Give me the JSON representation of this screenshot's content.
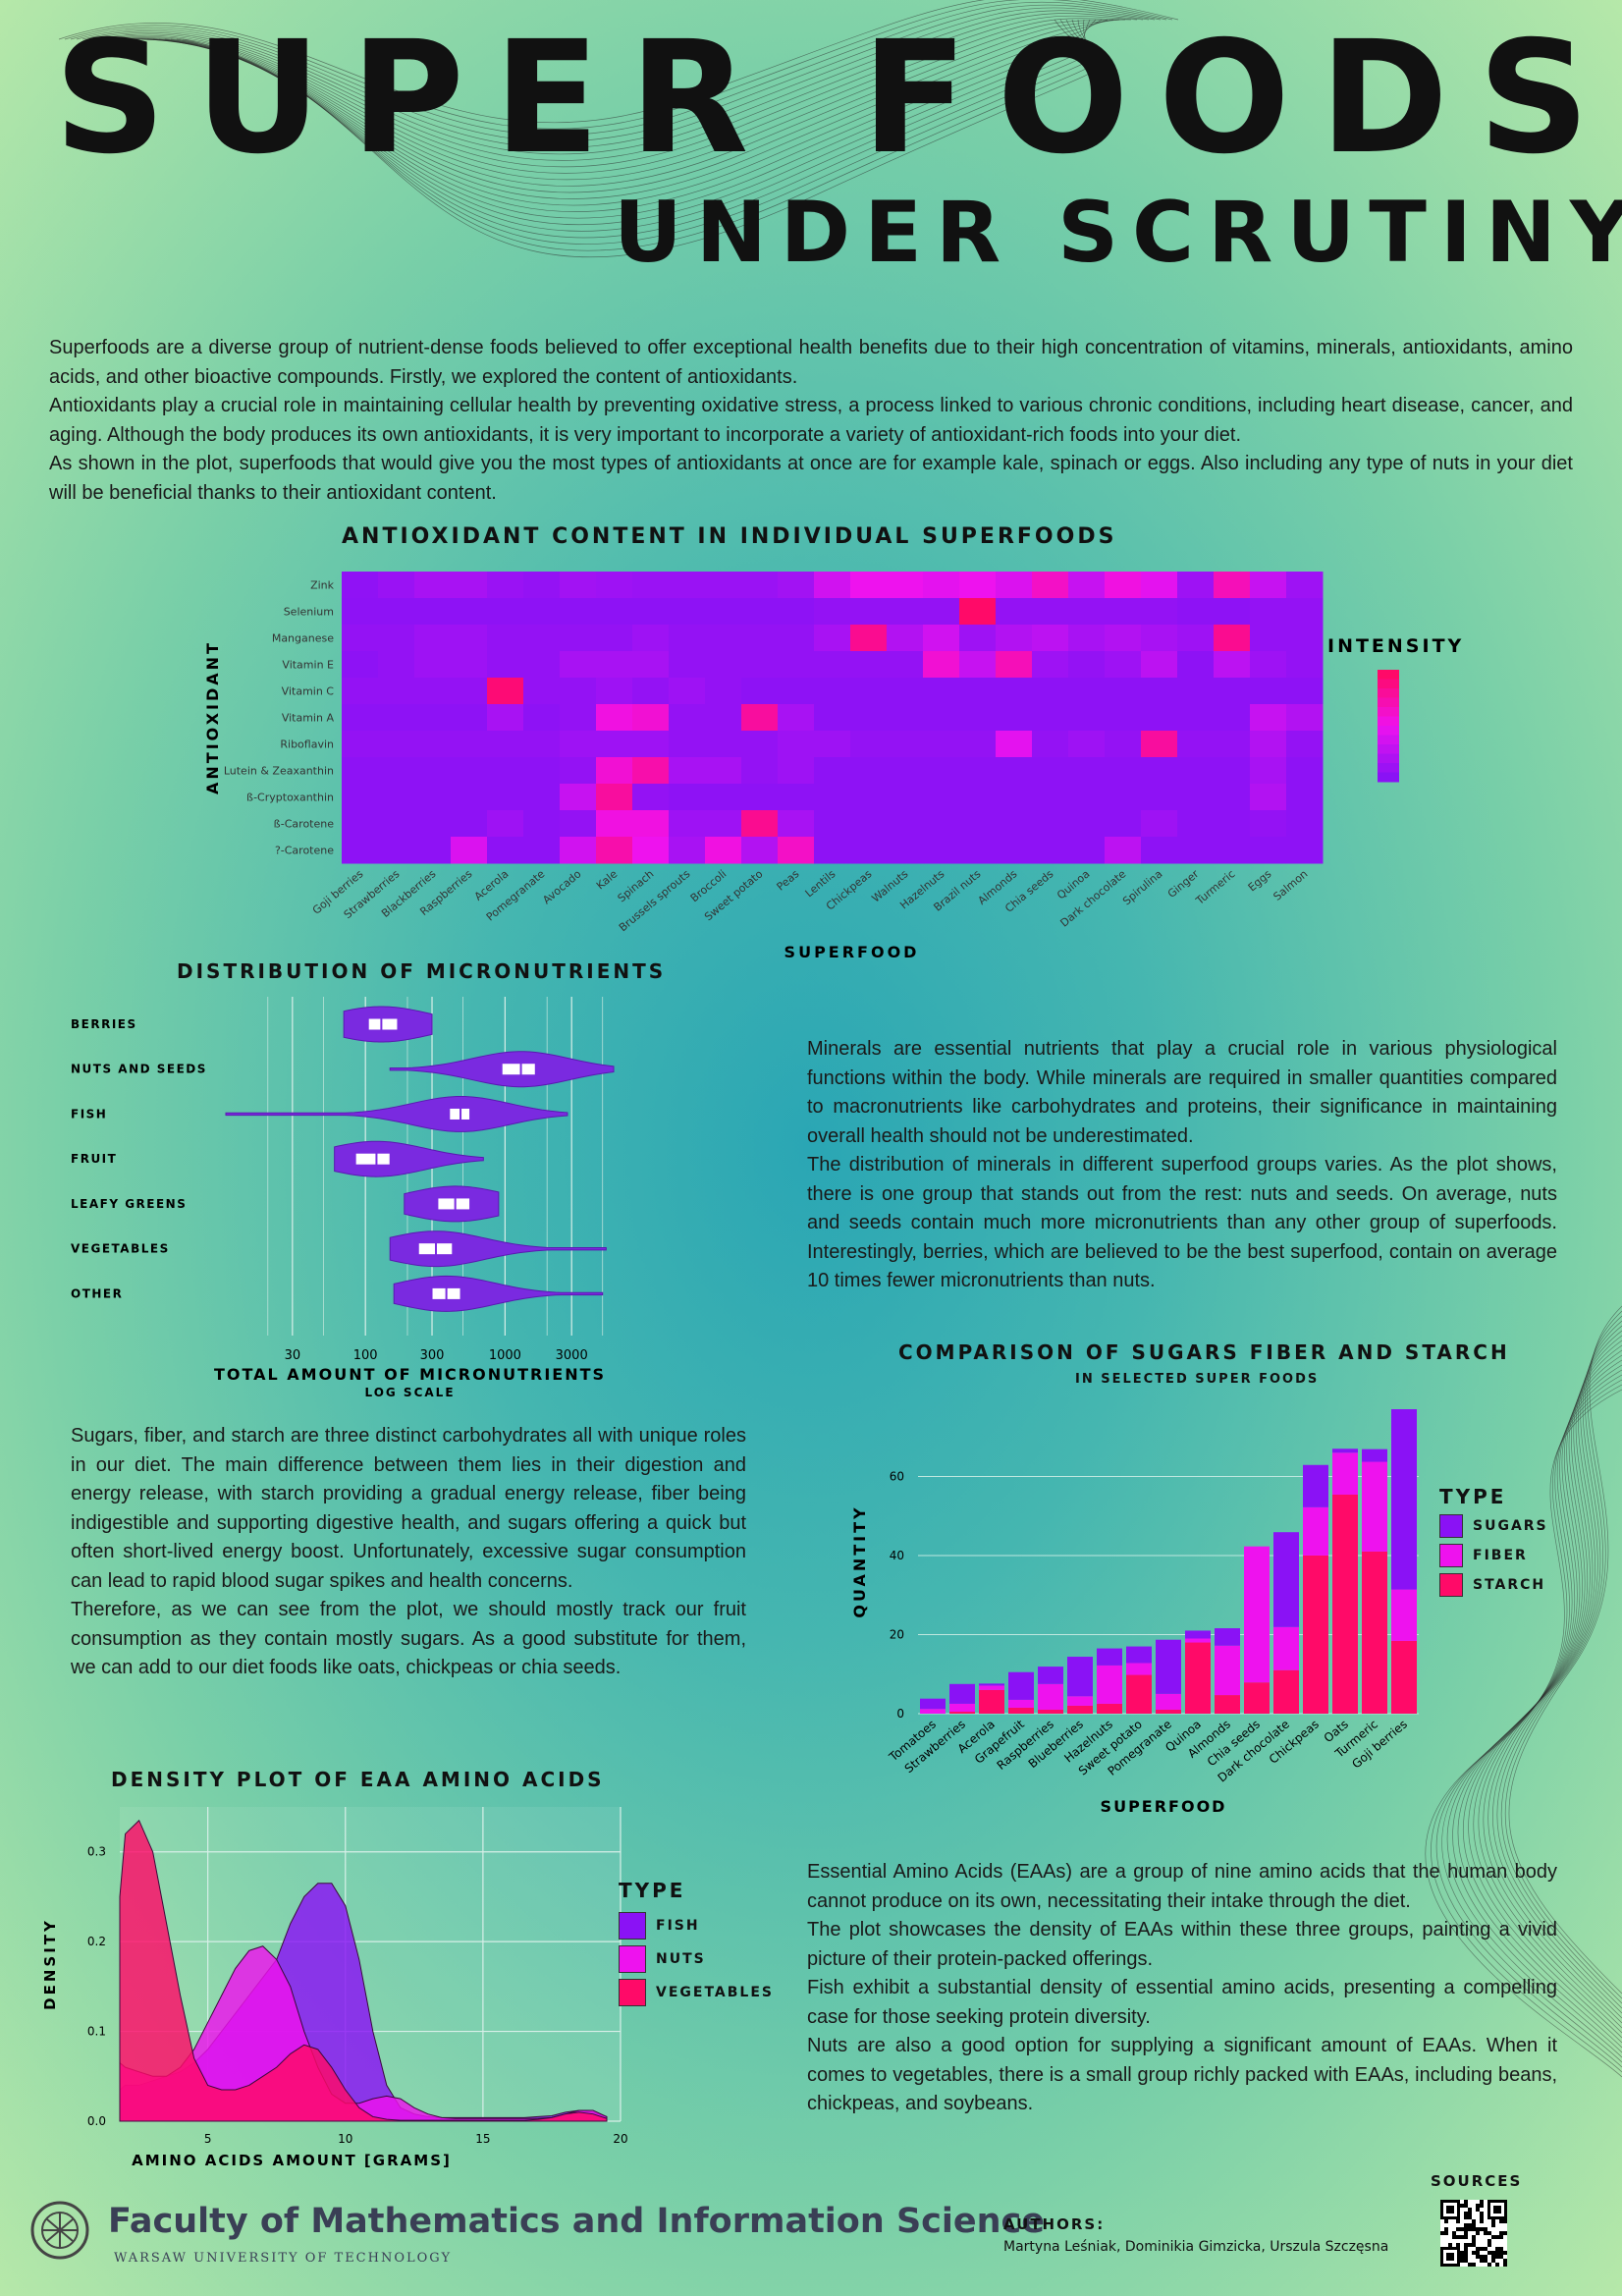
{
  "header": {
    "title": "SUPER FOODS",
    "subtitle": "UNDER SCRUTINY"
  },
  "intro": [
    "Superfoods are a diverse group of nutrient-dense foods believed to offer exceptional health benefits due to their high concentration of vitamins, minerals, antioxidants, amino acids, and other bioactive compounds. Firstly, we explored the content of antioxidants.",
    "Antioxidants play a crucial role in maintaining cellular health by preventing oxidative stress, a process linked to various chronic conditions, including heart disease, cancer, and aging. Although the body produces its own antioxidants, it is very important to incorporate a variety of antioxidant-rich foods into your diet.",
    "As shown in the plot, superfoods that would give you the most types of antioxidants at once are for example kale, spinach or eggs. Also including any type of nuts in your diet will be beneficial thanks to their antioxidant content."
  ],
  "minerals_text": [
    "Minerals are essential nutrients that play a crucial role in various physiological functions within the body. While minerals are required in smaller quantities compared to macronutrients like carbohydrates and proteins, their significance in maintaining overall health should not be underestimated.",
    "The distribution of minerals in different superfood groups varies. As the plot shows, there is one group that stands out from the rest: nuts and seeds. On average, nuts and seeds contain much more micronutrients than any other group of superfoods. Interestingly, berries, which are believed to be the best superfood, contain on average 10 times fewer micronutrients than nuts."
  ],
  "sugars_text": [
    "Sugars, fiber, and starch are three distinct carbohydrates all with unique roles in our diet. The main difference between them lies in their digestion and energy release, with starch providing a gradual energy release, fiber being indigestible and supporting digestive health, and sugars offering a quick but often short-lived energy boost. Unfortunately, excessive sugar consumption can lead to rapid blood sugar spikes and health concerns.",
    "Therefore, as we can see from the plot, we should mostly track our fruit consumption as they contain mostly sugars. As a good substitute for them, we can add to our diet foods like oats, chickpeas or chia seeds."
  ],
  "eaa_text": [
    "Essential Amino Acids (EAAs) are a group of nine amino acids that the human body cannot produce on its own, necessitating their intake through the diet.",
    "The plot showcases the density of EAAs within these three groups, painting a vivid picture of their protein-packed offerings.",
    "Fish exhibit a substantial density of essential amino acids, presenting a compelling case for those seeking protein diversity.",
    "Nuts are also a good option for supplying a significant amount of EAAs. When it comes to vegetables, there is a small group richly packed with EAAs, including beans, chickpeas, and soybeans."
  ],
  "footer": {
    "faculty": "Faculty of Mathematics and Information Science",
    "university": "WARSAW UNIVERSITY OF TECHNOLOGY",
    "authors_label": "AUTHORS:",
    "authors": "Martyna Leśniak, Dominikia Gimzicka, Urszula Szczęsna",
    "sources_label": "SOURCES"
  },
  "colors": {
    "purple": "#8a12f5",
    "magenta": "#ee12ee",
    "pink": "#ff0a68",
    "violet_plot": "#7a2ae0"
  },
  "chart_data": [
    {
      "type": "heatmap",
      "title": "ANTIOXIDANT CONTENT IN INDIVIDUAL SUPERFOODS",
      "xlabel": "SUPERFOOD",
      "ylabel": "ANTIOXIDANT",
      "legend_title": "INTENSITY",
      "x": [
        "Goji berries",
        "Strawberries",
        "Blackberries",
        "Raspberries",
        "Acerola",
        "Pomegranate",
        "Avocado",
        "Kale",
        "Spinach",
        "Brussels sprouts",
        "Broccoli",
        "Sweet potato",
        "Peas",
        "Lentils",
        "Chickpeas",
        "Walnuts",
        "Hazelnuts",
        "Brazil nuts",
        "Almonds",
        "Chia seeds",
        "Quinoa",
        "Dark chocolate",
        "Spirulina",
        "Ginger",
        "Turmeric",
        "Eggs",
        "Salmon"
      ],
      "y": [
        "Zink",
        "Selenium",
        "Manganese",
        "Vitamin E",
        "Vitamin C",
        "Vitamin A",
        "Riboflavin",
        "Lutein & Zeaxanthin",
        "ß-Cryptoxanthin",
        "ß-Carotene",
        "?-Carotene"
      ],
      "values": [
        [
          0.03,
          0.08,
          0.15,
          0.15,
          0.08,
          0.05,
          0.12,
          0.1,
          0.08,
          0.08,
          0.08,
          0.08,
          0.12,
          0.35,
          0.5,
          0.5,
          0.45,
          0.5,
          0.4,
          0.65,
          0.3,
          0.55,
          0.45,
          0.1,
          0.7,
          0.3,
          0.1
        ],
        [
          0.02,
          0.02,
          0.02,
          0.02,
          0.02,
          0.02,
          0.02,
          0.02,
          0.02,
          0.02,
          0.02,
          0.02,
          0.02,
          0.05,
          0.05,
          0.05,
          0.05,
          1.0,
          0.05,
          0.05,
          0.05,
          0.05,
          0.05,
          0.02,
          0.02,
          0.05,
          0.05
        ],
        [
          0.05,
          0.05,
          0.1,
          0.1,
          0.05,
          0.05,
          0.05,
          0.05,
          0.1,
          0.05,
          0.05,
          0.05,
          0.05,
          0.15,
          0.85,
          0.2,
          0.35,
          0.1,
          0.2,
          0.25,
          0.15,
          0.2,
          0.15,
          0.1,
          0.85,
          0.05,
          0.05
        ],
        [
          0.02,
          0.05,
          0.1,
          0.1,
          0.05,
          0.05,
          0.15,
          0.15,
          0.15,
          0.05,
          0.05,
          0.05,
          0.05,
          0.05,
          0.05,
          0.05,
          0.6,
          0.3,
          0.7,
          0.1,
          0.05,
          0.1,
          0.25,
          0.02,
          0.25,
          0.1,
          0.05
        ],
        [
          0.05,
          0.05,
          0.05,
          0.05,
          0.95,
          0.05,
          0.05,
          0.1,
          0.05,
          0.1,
          0.05,
          0.02,
          0.02,
          0.02,
          0.02,
          0.02,
          0.02,
          0.02,
          0.02,
          0.02,
          0.02,
          0.02,
          0.02,
          0.02,
          0.02,
          0.02,
          0.02
        ],
        [
          0.02,
          0.02,
          0.02,
          0.02,
          0.15,
          0.02,
          0.05,
          0.55,
          0.6,
          0.05,
          0.05,
          0.8,
          0.15,
          0.02,
          0.02,
          0.02,
          0.02,
          0.02,
          0.02,
          0.02,
          0.02,
          0.02,
          0.02,
          0.02,
          0.02,
          0.3,
          0.2
        ],
        [
          0.05,
          0.05,
          0.05,
          0.05,
          0.05,
          0.05,
          0.1,
          0.1,
          0.1,
          0.05,
          0.05,
          0.05,
          0.1,
          0.1,
          0.05,
          0.05,
          0.05,
          0.05,
          0.45,
          0.05,
          0.1,
          0.05,
          0.8,
          0.05,
          0.05,
          0.2,
          0.05
        ],
        [
          0.02,
          0.02,
          0.02,
          0.02,
          0.02,
          0.02,
          0.05,
          0.6,
          0.75,
          0.15,
          0.15,
          0.05,
          0.1,
          0.02,
          0.02,
          0.02,
          0.02,
          0.02,
          0.02,
          0.02,
          0.02,
          0.02,
          0.02,
          0.02,
          0.02,
          0.15,
          0.02
        ],
        [
          0.02,
          0.02,
          0.02,
          0.02,
          0.02,
          0.02,
          0.3,
          0.8,
          0.05,
          0.02,
          0.02,
          0.02,
          0.02,
          0.02,
          0.02,
          0.02,
          0.02,
          0.02,
          0.02,
          0.02,
          0.02,
          0.02,
          0.02,
          0.02,
          0.02,
          0.2,
          0.02
        ],
        [
          0.02,
          0.02,
          0.02,
          0.02,
          0.1,
          0.02,
          0.05,
          0.55,
          0.55,
          0.1,
          0.1,
          0.85,
          0.15,
          0.02,
          0.02,
          0.02,
          0.02,
          0.02,
          0.02,
          0.02,
          0.02,
          0.02,
          0.1,
          0.02,
          0.02,
          0.05,
          0.02
        ],
        [
          0.02,
          0.02,
          0.02,
          0.4,
          0.02,
          0.02,
          0.35,
          0.75,
          0.5,
          0.15,
          0.55,
          0.2,
          0.65,
          0.02,
          0.02,
          0.02,
          0.02,
          0.02,
          0.02,
          0.02,
          0.02,
          0.25,
          0.02,
          0.02,
          0.02,
          0.02,
          0.02
        ]
      ]
    },
    {
      "type": "violin",
      "title": "DISTRIBUTION OF MICRONUTRIENTS",
      "xlabel": "TOTAL AMOUNT OF MICRONUTRIENTS",
      "xlabel_sub": "LOG SCALE",
      "x_scale": "log",
      "x_ticks": [
        30,
        100,
        300,
        1000,
        3000
      ],
      "x_ticklabels": [
        "30",
        "100",
        "300",
        "1000",
        "3000"
      ],
      "xlim": [
        10,
        6000
      ],
      "categories": [
        "BERRIES",
        "NUTS AND SEEDS",
        "FISH",
        "FRUIT",
        "LEAFY GREENS",
        "VEGETABLES",
        "OTHER"
      ],
      "ranges": [
        [
          70,
          300
        ],
        [
          150,
          6000
        ],
        [
          10,
          2800
        ],
        [
          60,
          700
        ],
        [
          190,
          900
        ],
        [
          150,
          5300
        ],
        [
          160,
          5000
        ]
      ],
      "medians": [
        130,
        1300,
        480,
        120,
        440,
        320,
        380
      ],
      "q1": [
        105,
        950,
        400,
        85,
        330,
        240,
        300
      ],
      "q3": [
        170,
        1650,
        560,
        150,
        560,
        420,
        480
      ]
    },
    {
      "type": "bar",
      "stacked": true,
      "title": "COMPARISON OF SUGARS FIBER AND STARCH",
      "subtitle": "IN SELECTED SUPER FOODS",
      "xlabel": "SUPERFOOD",
      "ylabel": "QUANTITY",
      "legend_title": "TYPE",
      "ylim": [
        0,
        77
      ],
      "y_ticks": [
        0,
        20,
        40,
        60
      ],
      "categories": [
        "Tomatoes",
        "Strawberries",
        "Acerola",
        "Grapefruit",
        "Raspberries",
        "Blueberries",
        "Hazelnuts",
        "Sweet potato",
        "Pomegranate",
        "Quinoa",
        "Almonds",
        "Chia seeds",
        "Dark chocolate",
        "Chickpeas",
        "Oats",
        "Turmeric",
        "Goji berries"
      ],
      "series": [
        {
          "name": "SUGARS",
          "color": "#8a12f5",
          "values": [
            2.6,
            5.0,
            0.5,
            7.0,
            4.4,
            10.0,
            4.3,
            4.2,
            13.7,
            2.0,
            4.4,
            0,
            24.0,
            10.7,
            1.0,
            3.2,
            45.6
          ]
        },
        {
          "name": "FIBER",
          "color": "#ee12ee",
          "values": [
            1.2,
            2.0,
            1.1,
            2.0,
            6.5,
            2.4,
            9.7,
            3.0,
            4.0,
            1.0,
            12.5,
            34.4,
            10.9,
            12.2,
            10.6,
            22.7,
            13.0
          ]
        },
        {
          "name": "STARCH",
          "color": "#ff0a68",
          "values": [
            0,
            0.5,
            6.0,
            1.5,
            1.0,
            2.0,
            2.5,
            9.8,
            1.0,
            18.0,
            4.7,
            7.9,
            11.0,
            40.0,
            55.4,
            41.0,
            18.4
          ]
        }
      ]
    },
    {
      "type": "area",
      "title": "DENSITY PLOT OF EAA AMINO ACIDS",
      "xlabel": "AMINO ACIDS AMOUNT [GRAMS]",
      "ylabel": "DENSITY",
      "legend_title": "TYPE",
      "xlim": [
        0,
        20
      ],
      "ylim": [
        0,
        0.35
      ],
      "x_ticks": [
        5,
        10,
        15,
        20
      ],
      "y_ticks": [
        0.0,
        0.1,
        0.2,
        0.3
      ],
      "y_ticklabels": [
        "0.0",
        "0.1",
        "0.2",
        "0.3"
      ],
      "x": [
        0,
        0.5,
        1,
        1.5,
        2,
        2.5,
        3,
        3.5,
        4,
        4.5,
        5,
        5.5,
        6,
        6.5,
        7,
        7.5,
        8,
        8.5,
        9,
        9.5,
        10,
        10.5,
        11,
        11.5,
        12,
        12.5,
        13,
        13.5,
        14,
        14.5,
        15,
        15.5,
        16,
        16.5,
        17,
        17.5,
        18,
        18.5,
        19,
        19.5
      ],
      "series": [
        {
          "name": "FISH",
          "color": "#8a12f5",
          "values": [
            0.02,
            0.025,
            0.03,
            0.035,
            0.04,
            0.04,
            0.045,
            0.05,
            0.055,
            0.065,
            0.08,
            0.1,
            0.12,
            0.14,
            0.16,
            0.18,
            0.22,
            0.25,
            0.265,
            0.265,
            0.24,
            0.18,
            0.1,
            0.04,
            0.015,
            0.008,
            0.005,
            0.004,
            0.004,
            0.004,
            0.004,
            0.004,
            0.004,
            0.004,
            0.005,
            0.006,
            0.01,
            0.012,
            0.01,
            0.005
          ]
        },
        {
          "name": "NUTS",
          "color": "#ee12ee",
          "values": [
            0.05,
            0.06,
            0.065,
            0.065,
            0.06,
            0.055,
            0.05,
            0.05,
            0.06,
            0.08,
            0.11,
            0.14,
            0.17,
            0.19,
            0.195,
            0.18,
            0.15,
            0.1,
            0.06,
            0.03,
            0.02,
            0.02,
            0.025,
            0.028,
            0.025,
            0.015,
            0.008,
            0.004,
            0.003,
            0.003,
            0.003,
            0.003,
            0.003,
            0.003,
            0.003,
            0.004,
            0.008,
            0.012,
            0.012,
            0.005
          ]
        },
        {
          "name": "VEGETABLES",
          "color": "#ff0a68",
          "values": [
            0.07,
            0.09,
            0.15,
            0.25,
            0.32,
            0.335,
            0.3,
            0.22,
            0.14,
            0.07,
            0.04,
            0.035,
            0.035,
            0.04,
            0.05,
            0.06,
            0.075,
            0.085,
            0.08,
            0.06,
            0.035,
            0.015,
            0.005,
            0.002,
            0.001,
            0.001,
            0.001,
            0.001,
            0.001,
            0.001,
            0.001,
            0.001,
            0.001,
            0.001,
            0.002,
            0.004,
            0.008,
            0.01,
            0.008,
            0.003
          ]
        }
      ]
    }
  ]
}
